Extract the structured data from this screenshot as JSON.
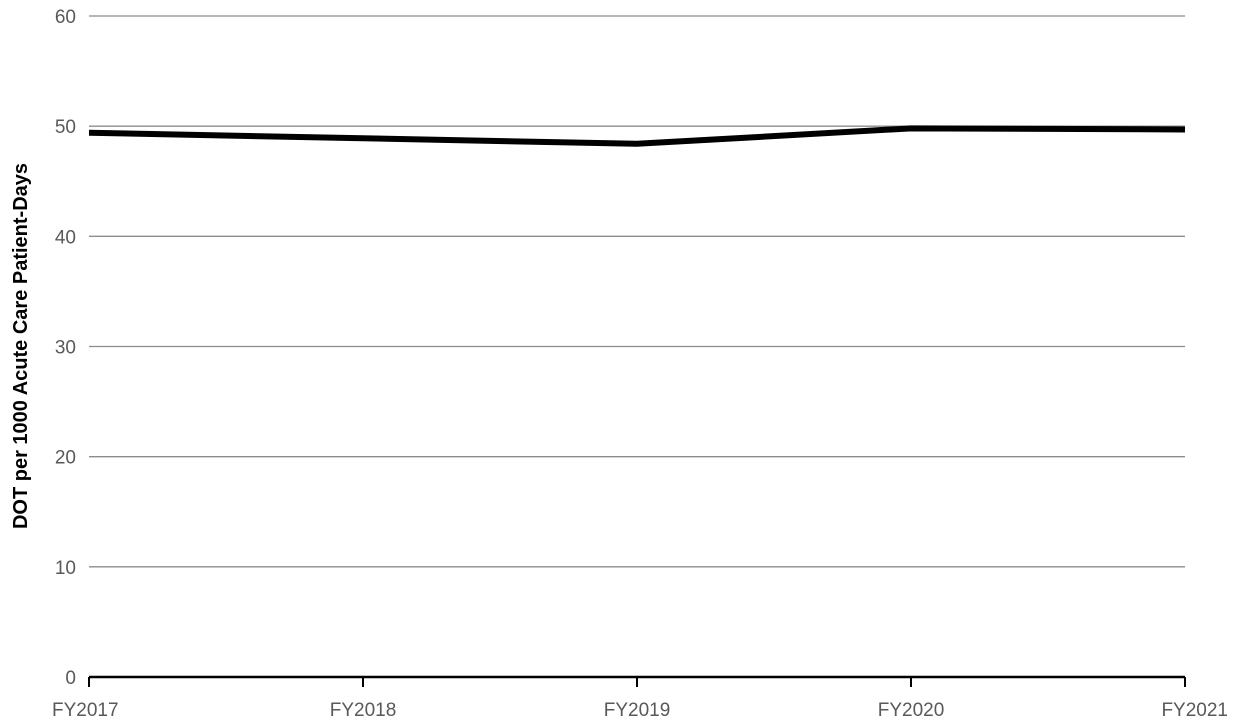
{
  "chart_data": {
    "type": "line",
    "title": "",
    "xlabel": "",
    "ylabel": "DOT per 1000 Acute Care Patient-Days",
    "categories": [
      "FY2017",
      "FY2018",
      "FY2019",
      "FY2020",
      "FY2021"
    ],
    "series": [
      {
        "values": [
          49.4,
          48.9,
          48.4,
          49.8,
          49.7
        ]
      }
    ],
    "ylim": [
      0,
      60
    ],
    "yticks": [
      "0",
      "10",
      "20",
      "30",
      "40",
      "50",
      "60"
    ],
    "grid": true,
    "legend": "none",
    "colors": {
      "line": "#000000",
      "grid": "#8c8c8c",
      "axis": "#000000",
      "tick_text": "#595959"
    }
  }
}
